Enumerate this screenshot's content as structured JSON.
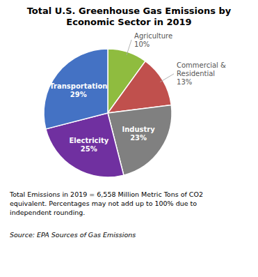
{
  "chart_data": {
    "type": "pie",
    "title": "Total U.S. Greenhouse Gas Emissions by\nEconomic Sector in 2019",
    "categories": [
      "Agriculture",
      "Commercial &\nResidential",
      "Industry",
      "Electricity",
      "Transportation"
    ],
    "values": [
      10,
      13,
      23,
      25,
      29
    ],
    "value_labels": [
      "10%",
      "13%",
      "23%",
      "25%",
      "29%"
    ],
    "data_labels": true,
    "colors": [
      "#8FBC3F",
      "#C0504D",
      "#808080",
      "#7030A0",
      "#4472C4"
    ],
    "annotations": [
      "Total Emissions in 2019 = 6,558 Million Metric Tons of CO2\nequivalent. Percentages may not add up to 100% due to\nindependent rounding.",
      "Source: EPA Sources of Gas Emissions"
    ]
  }
}
